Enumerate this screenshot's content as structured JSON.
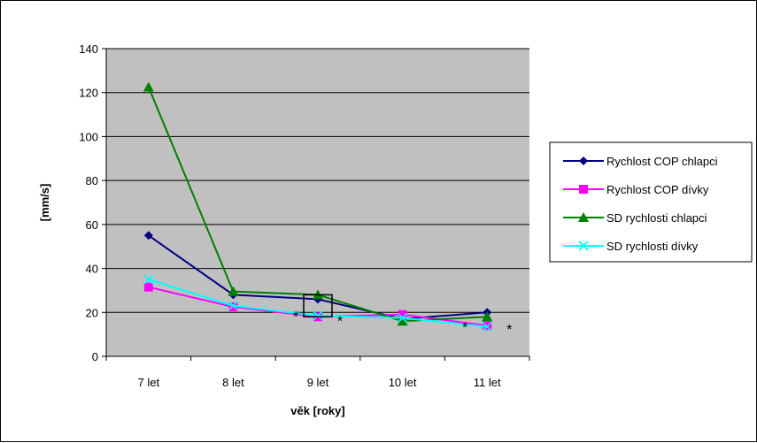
{
  "chart_data": {
    "type": "line",
    "title": "",
    "xlabel": "věk [roky]",
    "ylabel": "[mm/s]",
    "categories": [
      "7 let",
      "8 let",
      "9 let",
      "10 let",
      "11 let"
    ],
    "ylim": [
      0,
      140
    ],
    "yticks": [
      0,
      20,
      40,
      60,
      80,
      100,
      120,
      140
    ],
    "grid": true,
    "plot_background": "#c0c0c0",
    "legend_position": "right",
    "series": [
      {
        "name": "Rychlost COP chlapci",
        "color": "#000080",
        "marker": "diamond",
        "values": [
          55,
          28,
          26,
          17,
          20
        ]
      },
      {
        "name": "Rychlost COP dívky",
        "color": "#ff00ff",
        "marker": "square",
        "values": [
          31.5,
          22.5,
          18,
          19,
          14
        ]
      },
      {
        "name": "SD rychlosti chlapci",
        "color": "#008000",
        "marker": "triangle",
        "values": [
          122.5,
          29.5,
          28,
          16,
          18
        ]
      },
      {
        "name": "SD rychlosti dívky",
        "color": "#00ffff",
        "marker": "x",
        "values": [
          35,
          23,
          18.5,
          17.5,
          13.5
        ]
      }
    ],
    "annotations": [
      {
        "text": "*",
        "category": "9 let",
        "side": "left",
        "y": 20
      },
      {
        "text": "*",
        "category": "9 let",
        "side": "right",
        "y": 18
      },
      {
        "text": "*",
        "category": "11 let",
        "side": "left",
        "y": 15
      },
      {
        "text": "*",
        "category": "11 let",
        "side": "right",
        "y": 14
      }
    ],
    "highlight_box": {
      "category": "9 let",
      "y_range": [
        18,
        28
      ]
    }
  }
}
